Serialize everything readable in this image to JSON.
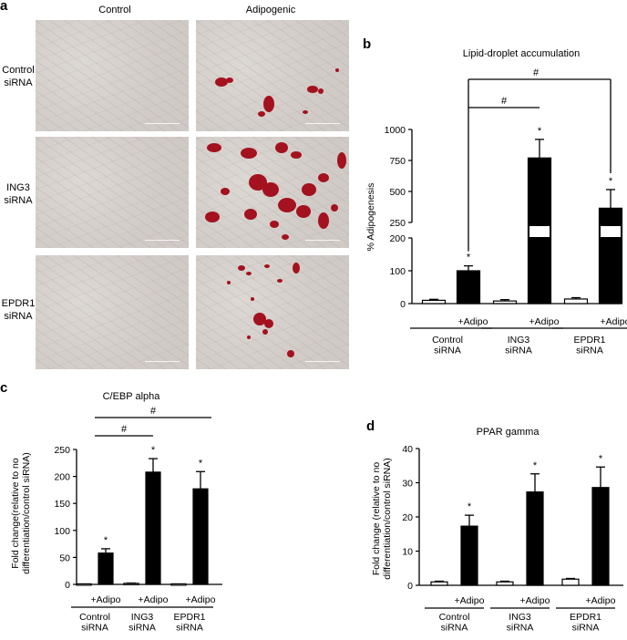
{
  "panel_letters": [
    "a",
    "b",
    "c",
    "d"
  ],
  "panel_a": {
    "col_headers": [
      "Control",
      "Adipogenic"
    ],
    "row_labels": [
      [
        "Control",
        "siRNA"
      ],
      [
        "ING3",
        "siRNA"
      ],
      [
        "EPDR1",
        "siRNA"
      ]
    ]
  },
  "chart_data": [
    {
      "id": "b",
      "type": "bar",
      "title": "Lipid-droplet accumulation",
      "ylabel": "% Adipogenesis",
      "y_axis_broken": true,
      "y_segments": [
        {
          "range": [
            0,
            200
          ],
          "ticks": [
            0,
            100,
            200
          ]
        },
        {
          "range": [
            250,
            1000
          ],
          "ticks": [
            250,
            500,
            750,
            1000
          ]
        }
      ],
      "groups": [
        {
          "label": [
            "Control",
            "siRNA"
          ],
          "bars": [
            {
              "label": "",
              "value": 10,
              "error": 3,
              "color": "#ffffff",
              "star": false
            },
            {
              "label": "+Adipo",
              "value": 100,
              "error": 15,
              "color": "#000000",
              "star": true
            }
          ]
        },
        {
          "label": [
            "ING3",
            "siRNA"
          ],
          "bars": [
            {
              "label": "",
              "value": 8,
              "error": 4,
              "color": "#ffffff",
              "star": false
            },
            {
              "label": "+Adipo",
              "value": 770,
              "error": 150,
              "color": "#000000",
              "star": true
            }
          ]
        },
        {
          "label": [
            "EPDR1",
            "siRNA"
          ],
          "bars": [
            {
              "label": "",
              "value": 14,
              "error": 4,
              "color": "#ffffff",
              "star": false
            },
            {
              "label": "+Adipo",
              "value": 365,
              "error": 150,
              "color": "#000000",
              "star": true
            }
          ]
        }
      ],
      "significance": [
        {
          "from": [
            0,
            1
          ],
          "to": [
            1,
            1
          ],
          "label": "#"
        },
        {
          "from": [
            0,
            1
          ],
          "to": [
            2,
            1
          ],
          "label": "#"
        }
      ]
    },
    {
      "id": "c",
      "type": "bar",
      "title": "C/EBP alpha",
      "ylabel": [
        "Fold change(relative to no",
        "differentiation/control siRNA)"
      ],
      "ylim": [
        0,
        250
      ],
      "ticks": [
        0,
        50,
        100,
        150,
        200,
        250
      ],
      "groups": [
        {
          "label": [
            "Control",
            "siRNA"
          ],
          "bars": [
            {
              "label": "",
              "value": 1,
              "error": 0,
              "color": "#ffffff",
              "star": false
            },
            {
              "label": "+Adipo",
              "value": 58,
              "error": 8,
              "color": "#000000",
              "star": true
            }
          ]
        },
        {
          "label": [
            "ING3",
            "siRNA"
          ],
          "bars": [
            {
              "label": "",
              "value": 2,
              "error": 0.5,
              "color": "#ffffff",
              "star": false
            },
            {
              "label": "+Adipo",
              "value": 208,
              "error": 25,
              "color": "#000000",
              "star": true
            }
          ]
        },
        {
          "label": [
            "EPDR1",
            "siRNA"
          ],
          "bars": [
            {
              "label": "",
              "value": 1,
              "error": 0,
              "color": "#ffffff",
              "star": false
            },
            {
              "label": "+Adipo",
              "value": 177,
              "error": 32,
              "color": "#000000",
              "star": true
            }
          ]
        }
      ],
      "significance": [
        {
          "from": [
            0,
            1
          ],
          "to": [
            1,
            1
          ],
          "label": "#"
        },
        {
          "from": [
            0,
            1
          ],
          "to": [
            2,
            1
          ],
          "label": "#"
        }
      ]
    },
    {
      "id": "d",
      "type": "bar",
      "title": "PPAR gamma",
      "ylabel": [
        "Fold change (relative to no",
        "differentiation/control siRNA)"
      ],
      "ylim": [
        0,
        40
      ],
      "ticks": [
        0,
        10,
        20,
        30,
        40
      ],
      "groups": [
        {
          "label": [
            "Control",
            "siRNA"
          ],
          "bars": [
            {
              "label": "",
              "value": 1,
              "error": 0.2,
              "color": "#ffffff",
              "star": false
            },
            {
              "label": "+Adipo",
              "value": 17.3,
              "error": 3.2,
              "color": "#000000",
              "star": true
            }
          ]
        },
        {
          "label": [
            "ING3",
            "siRNA"
          ],
          "bars": [
            {
              "label": "",
              "value": 1,
              "error": 0.2,
              "color": "#ffffff",
              "star": false
            },
            {
              "label": "+Adipo",
              "value": 27.3,
              "error": 5.3,
              "color": "#000000",
              "star": true
            }
          ]
        },
        {
          "label": [
            "EPDR1",
            "siRNA"
          ],
          "bars": [
            {
              "label": "",
              "value": 1.8,
              "error": 0.2,
              "color": "#ffffff",
              "star": false
            },
            {
              "label": "+Adipo",
              "value": 28.6,
              "error": 6,
              "color": "#000000",
              "star": true
            }
          ]
        }
      ],
      "significance": []
    }
  ]
}
